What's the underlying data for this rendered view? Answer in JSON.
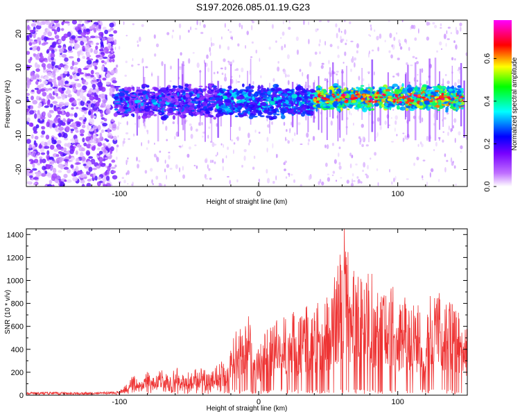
{
  "title": "S197.2026.085.01.19.G23",
  "chart_data": [
    {
      "type": "heatmap",
      "xlabel": "Height of straight line (km)",
      "ylabel": "Frequency (Hz)",
      "xlim": [
        -167,
        150
      ],
      "ylim": [
        -25,
        24
      ],
      "x_ticks": [
        -100,
        0,
        100
      ],
      "y_ticks": [
        -20,
        -10,
        0,
        10,
        20
      ],
      "colorbar": {
        "label": "Normalized spectral amplitude",
        "range": [
          0.0,
          0.78
        ],
        "ticks": [
          0.0,
          0.2,
          0.4,
          0.6
        ],
        "tick_labels": [
          "0.0",
          "0.2",
          "0.4",
          "0.6"
        ],
        "colors": [
          "#ffffff",
          "#b040ff",
          "#0000ff",
          "#00ffff",
          "#00ff00",
          "#ffff00",
          "#ff0000",
          "#ff00ff"
        ]
      },
      "description_of_data": [
        {
          "x_range": [
            -167,
            -103
          ],
          "freq_range": [
            -25,
            24
          ],
          "amplitude": [
            0.0,
            0.2
          ],
          "note": "broadband low-amplitude noise"
        },
        {
          "x_range": [
            -103,
            -30
          ],
          "freq_center": 0,
          "freq_halfwidth": 4,
          "amplitude": [
            0.1,
            0.35
          ]
        },
        {
          "x_range": [
            -30,
            40
          ],
          "freq_center": 0,
          "freq_halfwidth": 4,
          "amplitude": [
            0.15,
            0.4
          ]
        },
        {
          "x_range": [
            40,
            147
          ],
          "freq_center": 1,
          "freq_halfwidth": 3,
          "amplitude": [
            0.25,
            0.78
          ]
        }
      ]
    },
    {
      "type": "line",
      "xlabel": "Height of straight line (km)",
      "ylabel": "SNR (10 * v/v)",
      "xlim": [
        -167,
        150
      ],
      "ylim": [
        0,
        1450
      ],
      "x_ticks": [
        -100,
        0,
        100
      ],
      "y_ticks": [
        0,
        200,
        400,
        600,
        800,
        1000,
        1200,
        1400
      ],
      "color": "#ee3333",
      "series": [
        {
          "name": "SNR",
          "x": [
            -167,
            -150,
            -130,
            -110,
            -100,
            -93,
            -90,
            -85,
            -80,
            -75,
            -70,
            -65,
            -60,
            -55,
            -50,
            -45,
            -40,
            -35,
            -30,
            -25,
            -20,
            -17,
            -12,
            -8,
            -5,
            0,
            5,
            10,
            15,
            20,
            25,
            30,
            35,
            40,
            45,
            50,
            55,
            60,
            62,
            65,
            70,
            75,
            80,
            85,
            90,
            95,
            100,
            105,
            110,
            115,
            120,
            125,
            130,
            135,
            140,
            145,
            150
          ],
          "y": [
            20,
            25,
            20,
            25,
            30,
            120,
            180,
            100,
            200,
            150,
            220,
            160,
            250,
            180,
            200,
            230,
            220,
            180,
            250,
            300,
            400,
            550,
            600,
            750,
            500,
            400,
            550,
            600,
            750,
            650,
            700,
            650,
            750,
            700,
            900,
            800,
            1000,
            1250,
            1450,
            1100,
            1000,
            950,
            1050,
            900,
            850,
            950,
            800,
            850,
            750,
            800,
            700,
            900,
            850,
            750,
            800,
            700,
            650
          ]
        }
      ]
    }
  ]
}
